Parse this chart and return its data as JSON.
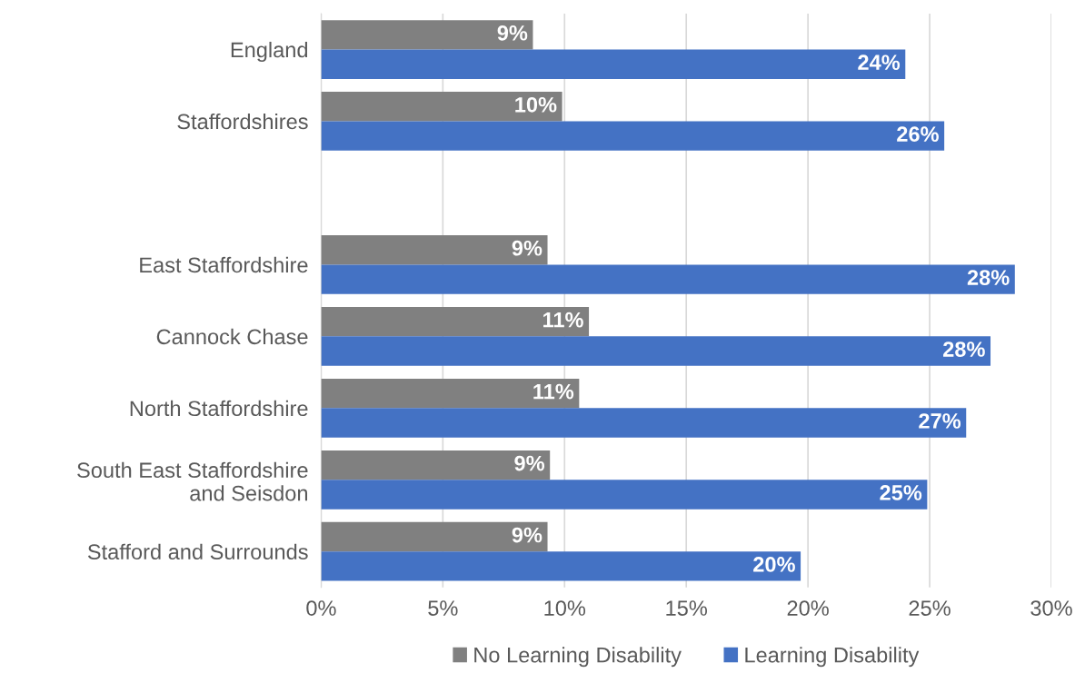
{
  "chart_data": {
    "type": "bar",
    "orientation": "horizontal",
    "categories": [
      "England",
      "Staffordshires",
      null,
      "East Staffordshire",
      "Cannock Chase",
      "North Staffordshire",
      "South East Staffordshire\nand Seisdon",
      "Stafford and Surrounds"
    ],
    "series": [
      {
        "name": "No Learning Disability",
        "color": "#808080",
        "values": [
          8.7,
          9.9,
          null,
          9.3,
          11.0,
          10.6,
          9.4,
          9.3
        ],
        "value_labels": [
          "9%",
          "10%",
          null,
          "9%",
          "11%",
          "11%",
          "9%",
          "9%"
        ]
      },
      {
        "name": "Learning Disability",
        "color": "#4472c4",
        "values": [
          24.0,
          25.6,
          null,
          28.5,
          27.5,
          26.5,
          24.9,
          19.7
        ],
        "value_labels": [
          "24%",
          "26%",
          null,
          "28%",
          "28%",
          "27%",
          "25%",
          "20%"
        ]
      }
    ],
    "xlim": [
      0,
      30
    ],
    "xticks": [
      {
        "value": 0,
        "label": "0%"
      },
      {
        "value": 5,
        "label": "5%"
      },
      {
        "value": 10,
        "label": "10%"
      },
      {
        "value": 15,
        "label": "15%"
      },
      {
        "value": 20,
        "label": "20%"
      },
      {
        "value": 25,
        "label": "25%"
      },
      {
        "value": 30,
        "label": "30%"
      }
    ],
    "grid": "x",
    "legend": "bottom"
  }
}
